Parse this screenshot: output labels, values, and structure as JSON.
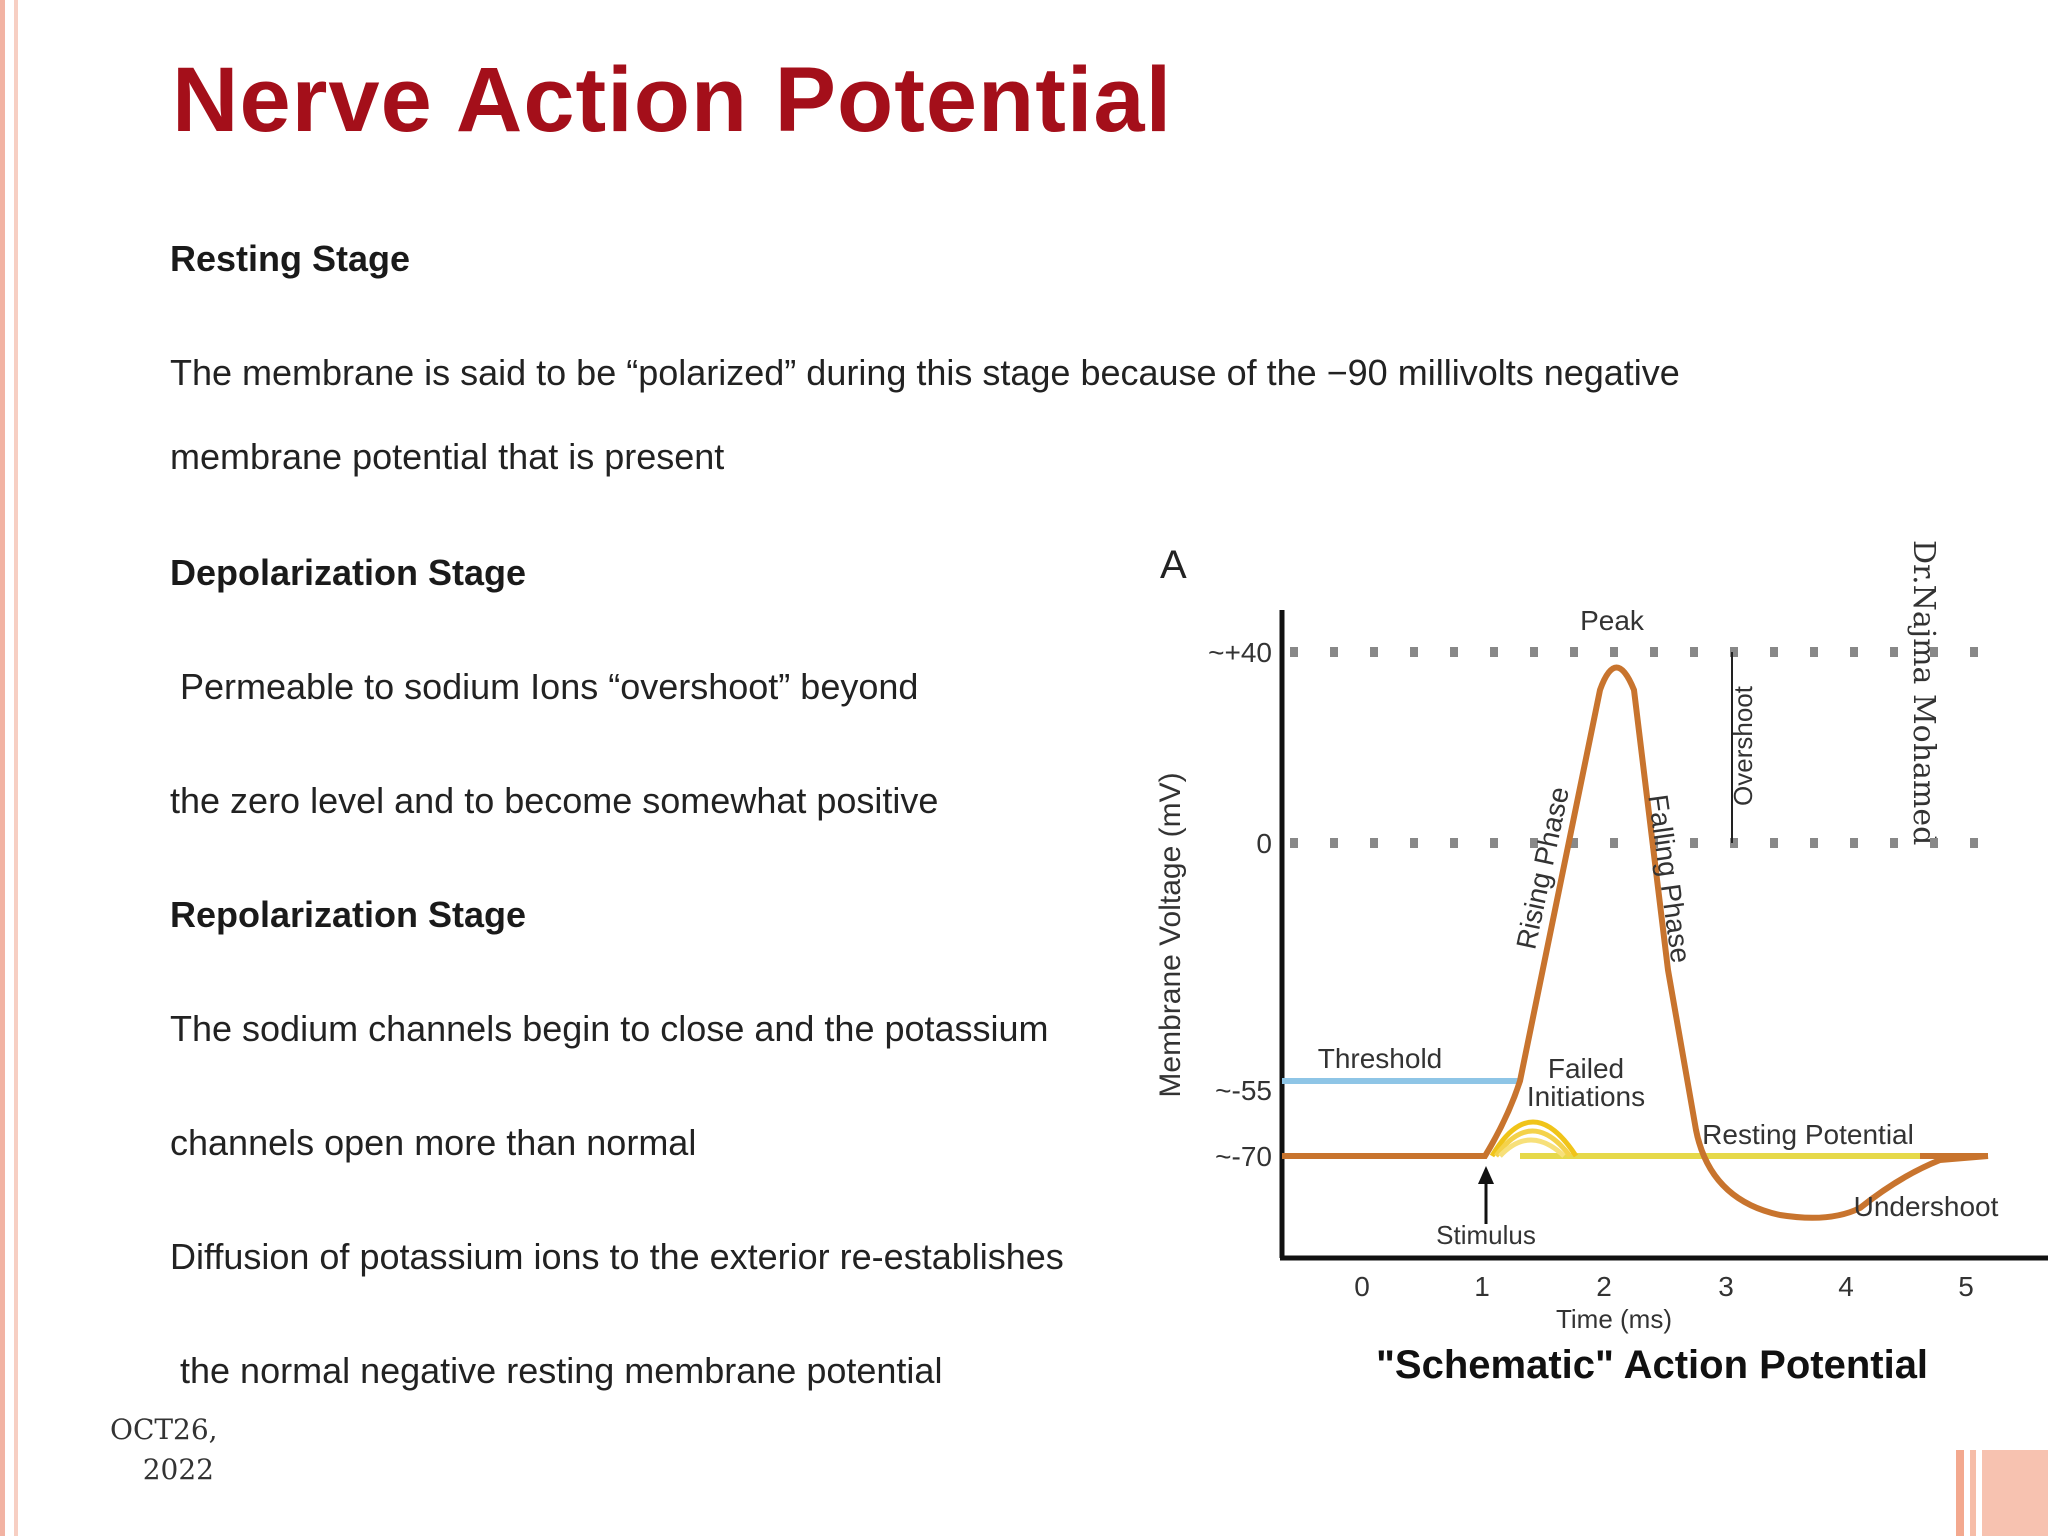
{
  "slide": {
    "title": "Nerve Action Potential",
    "sections": [
      {
        "heading": "Resting Stage",
        "lines": [
          "The membrane is said to be “polarized” during this stage because of the −90 millivolts negative",
          "membrane potential that is present"
        ]
      },
      {
        "heading": "Depolarization Stage",
        "lines": [
          " Permeable to sodium Ions “overshoot” beyond",
          "the zero level and to become somewhat positive"
        ]
      },
      {
        "heading": "Repolarization Stage",
        "lines": [
          "The sodium channels begin to close and the potassium",
          "channels open more than normal",
          "Diffusion of potassium ions to the exterior re-establishes",
          " the normal negative resting membrane potential"
        ]
      }
    ],
    "date_line1": "OCT26,",
    "date_line2": "2022",
    "author": "Dr.Najma Mohamed"
  },
  "figure": {
    "panel_letter": "A",
    "caption": "\"Schematic\" Action Potential",
    "ylabel": "Membrane Voltage (mV)",
    "xlabel": "Time (ms)",
    "y_ticks": [
      "~+40",
      "0",
      "~-55",
      "~-70"
    ],
    "x_ticks": [
      "0",
      "1",
      "2",
      "3",
      "4",
      "5"
    ],
    "labels": {
      "peak": "Peak",
      "rising": "Rising Phase",
      "falling": "Falling Phase",
      "overshoot": "Overshoot",
      "threshold": "Threshold",
      "failed1": "Failed",
      "failed2": "Initiations",
      "resting": "Resting Potential",
      "undershoot": "Undershoot",
      "stimulus": "Stimulus"
    },
    "colors": {
      "trace": "#c8742e",
      "threshold": "#8ec5e6",
      "resting": "#e6d94a",
      "failed": "#f0c419",
      "dots": "#888888",
      "axis": "#111111"
    }
  }
}
